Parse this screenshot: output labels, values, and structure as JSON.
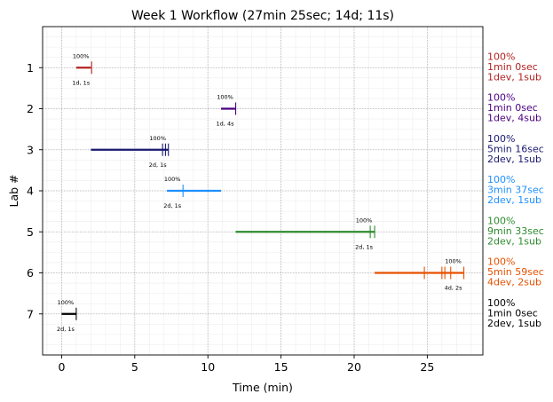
{
  "chart_data": {
    "type": "timeline",
    "title": "Week 1 Workflow (27min 25sec; 14d; 11s)",
    "xlabel": "Time (min)",
    "ylabel": "Lab #",
    "xlim": [
      -1.3,
      28.8
    ],
    "ylim": [
      8,
      0
    ],
    "xticks": [
      0,
      5,
      10,
      15,
      20,
      25
    ],
    "yticks": [
      1,
      2,
      3,
      4,
      5,
      6,
      7
    ],
    "grid": true,
    "labs": [
      {
        "lab": 1,
        "start": 1.0,
        "end": 2.0,
        "marks": [
          2.05
        ],
        "pct": "100%",
        "counts": "1d, 1s",
        "side": [
          "100%",
          "1min 0sec",
          "1dev, 1sub"
        ],
        "color": "#b22222"
      },
      {
        "lab": 2,
        "start": 10.9,
        "end": 11.9,
        "marks": [
          11.9
        ],
        "pct": "100%",
        "counts": "1d, 4s",
        "side": [
          "100%",
          "1min 0sec",
          "1dev, 4sub"
        ],
        "color": "#4b0082"
      },
      {
        "lab": 3,
        "start": 2.0,
        "end": 7.3,
        "marks": [
          6.9,
          7.1,
          7.3
        ],
        "pct": "100%",
        "counts": "2d, 1s",
        "side": [
          "100%",
          "5min 16sec",
          "2dev, 1sub"
        ],
        "color": "#191970"
      },
      {
        "lab": 4,
        "start": 7.2,
        "end": 10.9,
        "marks": [
          8.3
        ],
        "pct": "100%",
        "counts": "2d, 1s",
        "side": [
          "100%",
          "3min 37sec",
          "2dev, 1sub"
        ],
        "color": "#1e90ff"
      },
      {
        "lab": 5,
        "start": 11.9,
        "end": 21.4,
        "marks": [
          21.1,
          21.4
        ],
        "pct": "100%",
        "counts": "2d, 1s",
        "side": [
          "100%",
          "9min 33sec",
          "2dev, 1sub"
        ],
        "color": "#2e8b2e"
      },
      {
        "lab": 6,
        "start": 21.4,
        "end": 27.5,
        "marks": [
          24.8,
          26.0,
          26.2,
          26.6,
          27.5
        ],
        "pct": "100%",
        "counts": "4d, 2s",
        "side": [
          "100%",
          "5min 59sec",
          "4dev, 2sub"
        ],
        "color": "#e65100"
      },
      {
        "lab": 7,
        "start": 0.0,
        "end": 1.0,
        "marks": [
          1.0
        ],
        "pct": "100%",
        "counts": "2d, 1s",
        "side": [
          "100%",
          "1min 0sec",
          "2dev, 1sub"
        ],
        "color": "#000000"
      }
    ]
  }
}
